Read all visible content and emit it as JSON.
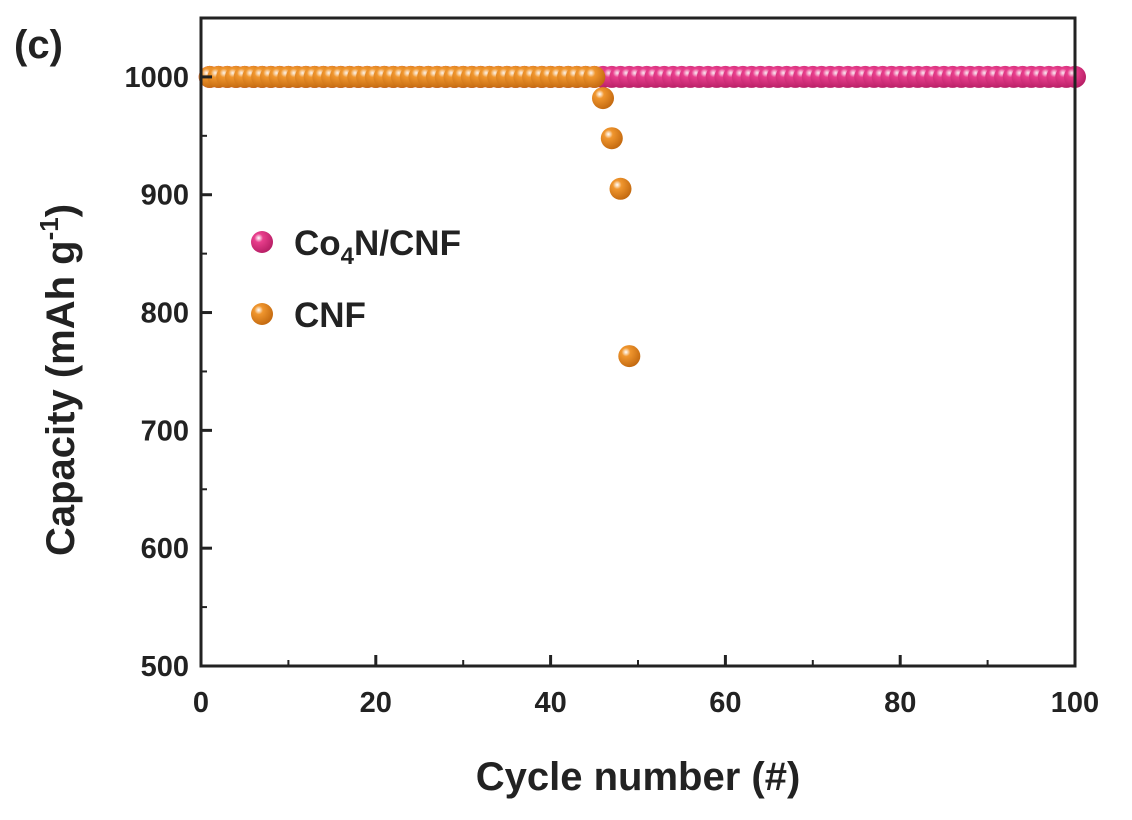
{
  "panel_label": "(c)",
  "chart_data": {
    "type": "scatter",
    "xlabel": "Cycle number (#)",
    "ylabel": "Capacity (mAh g",
    "ylabel_superscript": "-1",
    "ylabel_close": ")",
    "xlim": [
      0,
      100
    ],
    "ylim": [
      500,
      1050
    ],
    "x_ticks": [
      0,
      20,
      40,
      60,
      80,
      100
    ],
    "x_tick_labels": [
      "0",
      "20",
      "40",
      "60",
      "80",
      "100"
    ],
    "y_ticks": [
      500,
      600,
      700,
      800,
      900,
      1000
    ],
    "y_tick_labels": [
      "500",
      "600",
      "700",
      "800",
      "900",
      "1000"
    ],
    "grid": false,
    "legend_position": "middle-left",
    "series": [
      {
        "name": "Co4N/CNF",
        "name_parts": [
          "Co",
          "4",
          "N/CNF"
        ],
        "color": "#e83e8c",
        "x": [
          1,
          2,
          3,
          4,
          5,
          6,
          7,
          8,
          9,
          10,
          11,
          12,
          13,
          14,
          15,
          16,
          17,
          18,
          19,
          20,
          21,
          22,
          23,
          24,
          25,
          26,
          27,
          28,
          29,
          30,
          31,
          32,
          33,
          34,
          35,
          36,
          37,
          38,
          39,
          40,
          41,
          42,
          43,
          44,
          45,
          46,
          47,
          48,
          49,
          50,
          51,
          52,
          53,
          54,
          55,
          56,
          57,
          58,
          59,
          60,
          61,
          62,
          63,
          64,
          65,
          66,
          67,
          68,
          69,
          70,
          71,
          72,
          73,
          74,
          75,
          76,
          77,
          78,
          79,
          80,
          81,
          82,
          83,
          84,
          85,
          86,
          87,
          88,
          89,
          90,
          91,
          92,
          93,
          94,
          95,
          96,
          97,
          98,
          99,
          100
        ],
        "y": [
          1000,
          1000,
          1000,
          1000,
          1000,
          1000,
          1000,
          1000,
          1000,
          1000,
          1000,
          1000,
          1000,
          1000,
          1000,
          1000,
          1000,
          1000,
          1000,
          1000,
          1000,
          1000,
          1000,
          1000,
          1000,
          1000,
          1000,
          1000,
          1000,
          1000,
          1000,
          1000,
          1000,
          1000,
          1000,
          1000,
          1000,
          1000,
          1000,
          1000,
          1000,
          1000,
          1000,
          1000,
          1000,
          1000,
          1000,
          1000,
          1000,
          1000,
          1000,
          1000,
          1000,
          1000,
          1000,
          1000,
          1000,
          1000,
          1000,
          1000,
          1000,
          1000,
          1000,
          1000,
          1000,
          1000,
          1000,
          1000,
          1000,
          1000,
          1000,
          1000,
          1000,
          1000,
          1000,
          1000,
          1000,
          1000,
          1000,
          1000,
          1000,
          1000,
          1000,
          1000,
          1000,
          1000,
          1000,
          1000,
          1000,
          1000,
          1000,
          1000,
          1000,
          1000,
          1000,
          1000,
          1000,
          1000,
          1000,
          1000
        ]
      },
      {
        "name": "CNF",
        "name_parts": [
          "CNF"
        ],
        "color": "#f0962e",
        "x": [
          1,
          2,
          3,
          4,
          5,
          6,
          7,
          8,
          9,
          10,
          11,
          12,
          13,
          14,
          15,
          16,
          17,
          18,
          19,
          20,
          21,
          22,
          23,
          24,
          25,
          26,
          27,
          28,
          29,
          30,
          31,
          32,
          33,
          34,
          35,
          36,
          37,
          38,
          39,
          40,
          41,
          42,
          43,
          44,
          45,
          46,
          47,
          48,
          49
        ],
        "y": [
          1000,
          1000,
          1000,
          1000,
          1000,
          1000,
          1000,
          1000,
          1000,
          1000,
          1000,
          1000,
          1000,
          1000,
          1000,
          1000,
          1000,
          1000,
          1000,
          1000,
          1000,
          1000,
          1000,
          1000,
          1000,
          1000,
          1000,
          1000,
          1000,
          1000,
          1000,
          1000,
          1000,
          1000,
          1000,
          1000,
          1000,
          1000,
          1000,
          1000,
          1000,
          1000,
          1000,
          1000,
          1000,
          982,
          948,
          905,
          763
        ]
      }
    ]
  }
}
